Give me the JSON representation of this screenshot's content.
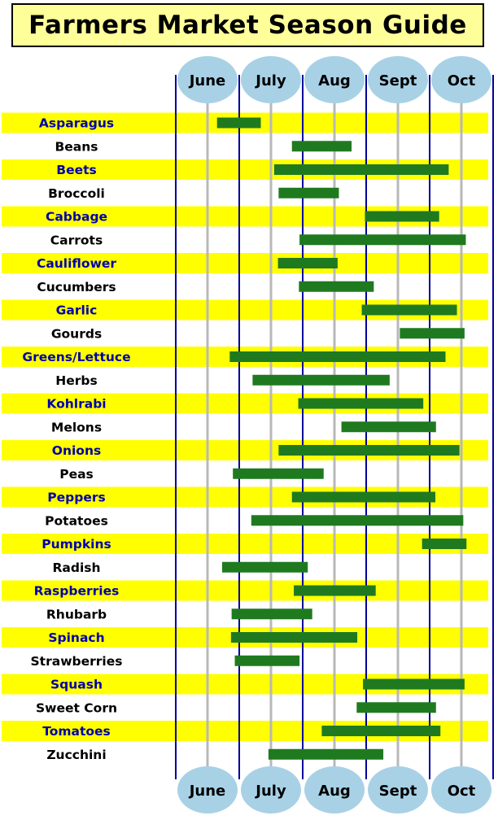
{
  "title": "Farmers Market Season Guide",
  "colors": {
    "band": "#ffff00",
    "bar": "#1f7a1f",
    "bubble": "#a8d1e6",
    "month_line": "#00009a",
    "mid_line": "#b8b8b8",
    "title_bg": "#ffff99",
    "highlight_text": "#0000aa",
    "plain_text": "#000000"
  },
  "chart_data": {
    "type": "gantt",
    "title": "Farmers Market Season Guide",
    "months": [
      "June",
      "July",
      "Aug",
      "Sept",
      "Oct"
    ],
    "x_range": [
      "June start",
      "Oct end"
    ],
    "value_units": "months since start of June (0 = June 1, 5 = end of October)",
    "crops": [
      {
        "name": "Asparagus",
        "start": 0.65,
        "end": 1.34
      },
      {
        "name": "Beans",
        "start": 1.83,
        "end": 2.77
      },
      {
        "name": "Beets",
        "start": 1.55,
        "end": 4.3
      },
      {
        "name": "Broccoli",
        "start": 1.62,
        "end": 2.57
      },
      {
        "name": "Cabbage",
        "start": 2.98,
        "end": 4.15
      },
      {
        "name": "Carrots",
        "start": 1.95,
        "end": 4.57
      },
      {
        "name": "Cauliflower",
        "start": 1.61,
        "end": 2.55
      },
      {
        "name": "Cucumbers",
        "start": 1.94,
        "end": 3.12
      },
      {
        "name": "Garlic",
        "start": 2.93,
        "end": 4.43
      },
      {
        "name": "Gourds",
        "start": 3.53,
        "end": 4.55
      },
      {
        "name": "Greens/Lettuce",
        "start": 0.85,
        "end": 4.25
      },
      {
        "name": "Herbs",
        "start": 1.21,
        "end": 3.37
      },
      {
        "name": "Kohlrabi",
        "start": 1.93,
        "end": 3.9
      },
      {
        "name": "Melons",
        "start": 2.61,
        "end": 4.1
      },
      {
        "name": "Onions",
        "start": 1.62,
        "end": 4.47
      },
      {
        "name": "Peas",
        "start": 0.9,
        "end": 2.33
      },
      {
        "name": "Peppers",
        "start": 1.83,
        "end": 4.09
      },
      {
        "name": "Potatoes",
        "start": 1.19,
        "end": 4.53
      },
      {
        "name": "Pumpkins",
        "start": 3.88,
        "end": 4.58
      },
      {
        "name": "Radish",
        "start": 0.73,
        "end": 2.08
      },
      {
        "name": "Raspberries",
        "start": 1.86,
        "end": 3.15
      },
      {
        "name": "Rhubarb",
        "start": 0.88,
        "end": 2.15
      },
      {
        "name": "Spinach",
        "start": 0.87,
        "end": 2.86
      },
      {
        "name": "Strawberries",
        "start": 0.93,
        "end": 1.95
      },
      {
        "name": "Squash",
        "start": 2.95,
        "end": 4.55
      },
      {
        "name": "Sweet Corn",
        "start": 2.85,
        "end": 4.1
      },
      {
        "name": "Tomatoes",
        "start": 2.3,
        "end": 4.17
      },
      {
        "name": "Zucchini",
        "start": 1.46,
        "end": 3.27
      }
    ]
  }
}
